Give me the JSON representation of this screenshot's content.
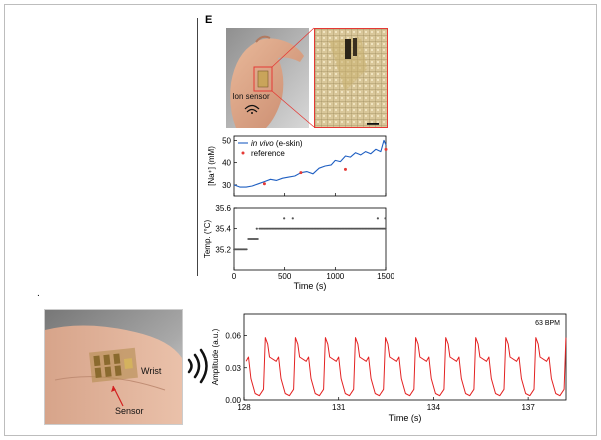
{
  "panel_e": {
    "label": "E",
    "photo_caption": "Ion sensor",
    "bullet": "."
  },
  "wrist_photo": {
    "wrist_label": "Wrist",
    "sensor_label": "Sensor"
  },
  "chart_data": [
    {
      "type": "line",
      "ylabel": "[Na⁺] (mM)",
      "xlim": [
        0,
        1500
      ],
      "ylim": [
        25,
        52
      ],
      "xticks": [
        0,
        500,
        1000,
        1500
      ],
      "yticks": [
        30,
        40,
        50
      ],
      "legend_position": "top-left",
      "series": [
        {
          "name": "in vivo (e-skin)",
          "name_italic": "in vivo",
          "name_rest": " (e-skin)",
          "color": "#1f5fc2",
          "x": [
            0,
            60,
            120,
            180,
            240,
            300,
            360,
            420,
            480,
            540,
            600,
            660,
            720,
            780,
            840,
            900,
            960,
            1000,
            1050,
            1100,
            1150,
            1200,
            1250,
            1300,
            1350,
            1400,
            1450,
            1480,
            1500
          ],
          "y": [
            30,
            29,
            29,
            29.5,
            30.5,
            31.5,
            32.5,
            32,
            33,
            33.5,
            34,
            35.5,
            36,
            35,
            37.5,
            38.5,
            39,
            41,
            40.5,
            43,
            42.5,
            44.5,
            43.5,
            45,
            44,
            46,
            45,
            50,
            48
          ]
        },
        {
          "name": "reference",
          "type": "scatter",
          "color": "#e53935",
          "x": [
            300,
            660,
            1100,
            1500
          ],
          "y": [
            30.5,
            35.5,
            37,
            46
          ]
        }
      ]
    },
    {
      "type": "scatter",
      "xlabel": "Time (s)",
      "ylabel": "Temp. (°C)",
      "xlim": [
        0,
        1500
      ],
      "ylim": [
        35.0,
        35.6
      ],
      "xticks": [
        0,
        500,
        1000,
        1500
      ],
      "yticks": [
        35.2,
        35.4,
        35.6
      ],
      "color": "#555555",
      "segments": [
        {
          "x_start": 0,
          "x_end": 130,
          "y": 35.2
        },
        {
          "x_start": 140,
          "x_end": 240,
          "y": 35.3
        },
        {
          "x_start": 250,
          "x_end": 1500,
          "y": 35.4
        }
      ],
      "extra_points": {
        "x": [
          225,
          495,
          580,
          1420,
          1495
        ],
        "y": [
          35.4,
          35.5,
          35.5,
          35.5,
          35.5
        ]
      }
    },
    {
      "type": "line",
      "xlabel": "Time (s)",
      "ylabel": "Amplitude (a.u.)",
      "annotation": "63 BPM",
      "xlim": [
        128,
        138.2
      ],
      "ylim": [
        0,
        0.08
      ],
      "xticks": [
        128,
        131,
        134,
        137
      ],
      "yticks": [
        0.0,
        0.03,
        0.06
      ],
      "color": "#e32222",
      "beat_period_s": 0.952,
      "beat_template": {
        "phase": [
          0,
          0.06,
          0.14,
          0.2,
          0.42,
          0.5,
          0.58,
          0.72,
          0.86,
          1.0
        ],
        "amp": [
          0.01,
          0.058,
          0.052,
          0.04,
          0.036,
          0.04,
          0.02,
          0.006,
          0.004,
          0.01
        ]
      }
    }
  ]
}
